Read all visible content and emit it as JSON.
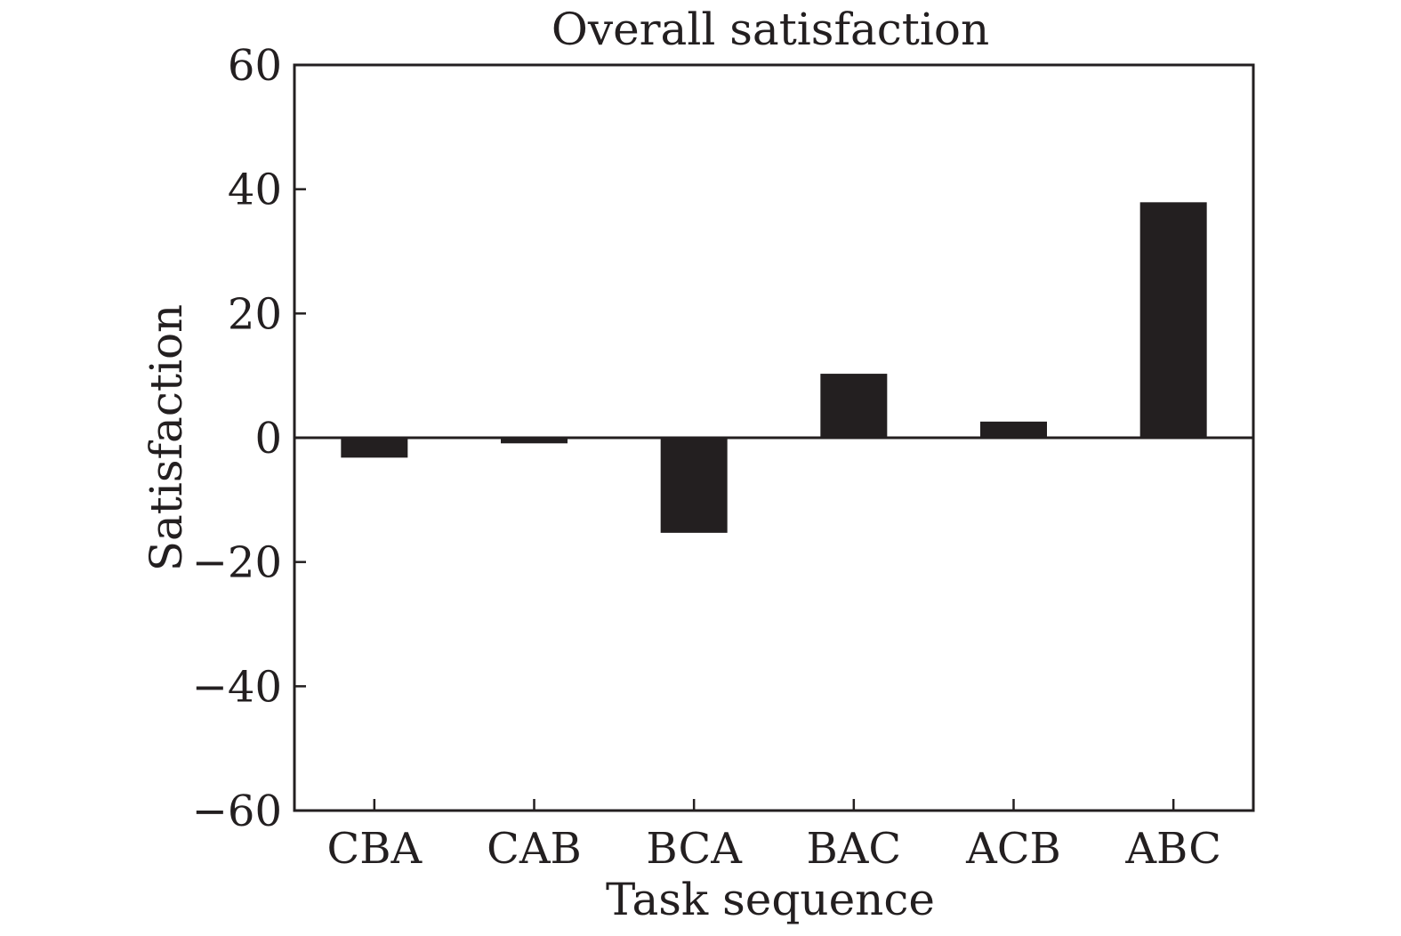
{
  "chart_data": {
    "type": "bar",
    "title": "Overall satisfaction",
    "xlabel": "Task sequence",
    "ylabel": "Satisfaction",
    "categories": [
      "CBA",
      "CAB",
      "BCA",
      "BAC",
      "ACB",
      "ABC"
    ],
    "values": [
      -3.2,
      -0.9,
      -15.3,
      10.3,
      2.6,
      37.9
    ],
    "ylim": [
      -60,
      60
    ],
    "yticks": [
      -60,
      -40,
      -20,
      0,
      20,
      40,
      60
    ],
    "ytick_labels": [
      "−60",
      "−40",
      "−20",
      "0",
      "20",
      "40",
      "60"
    ],
    "grid": false,
    "legend": "none",
    "bar_color": "#231f20"
  }
}
